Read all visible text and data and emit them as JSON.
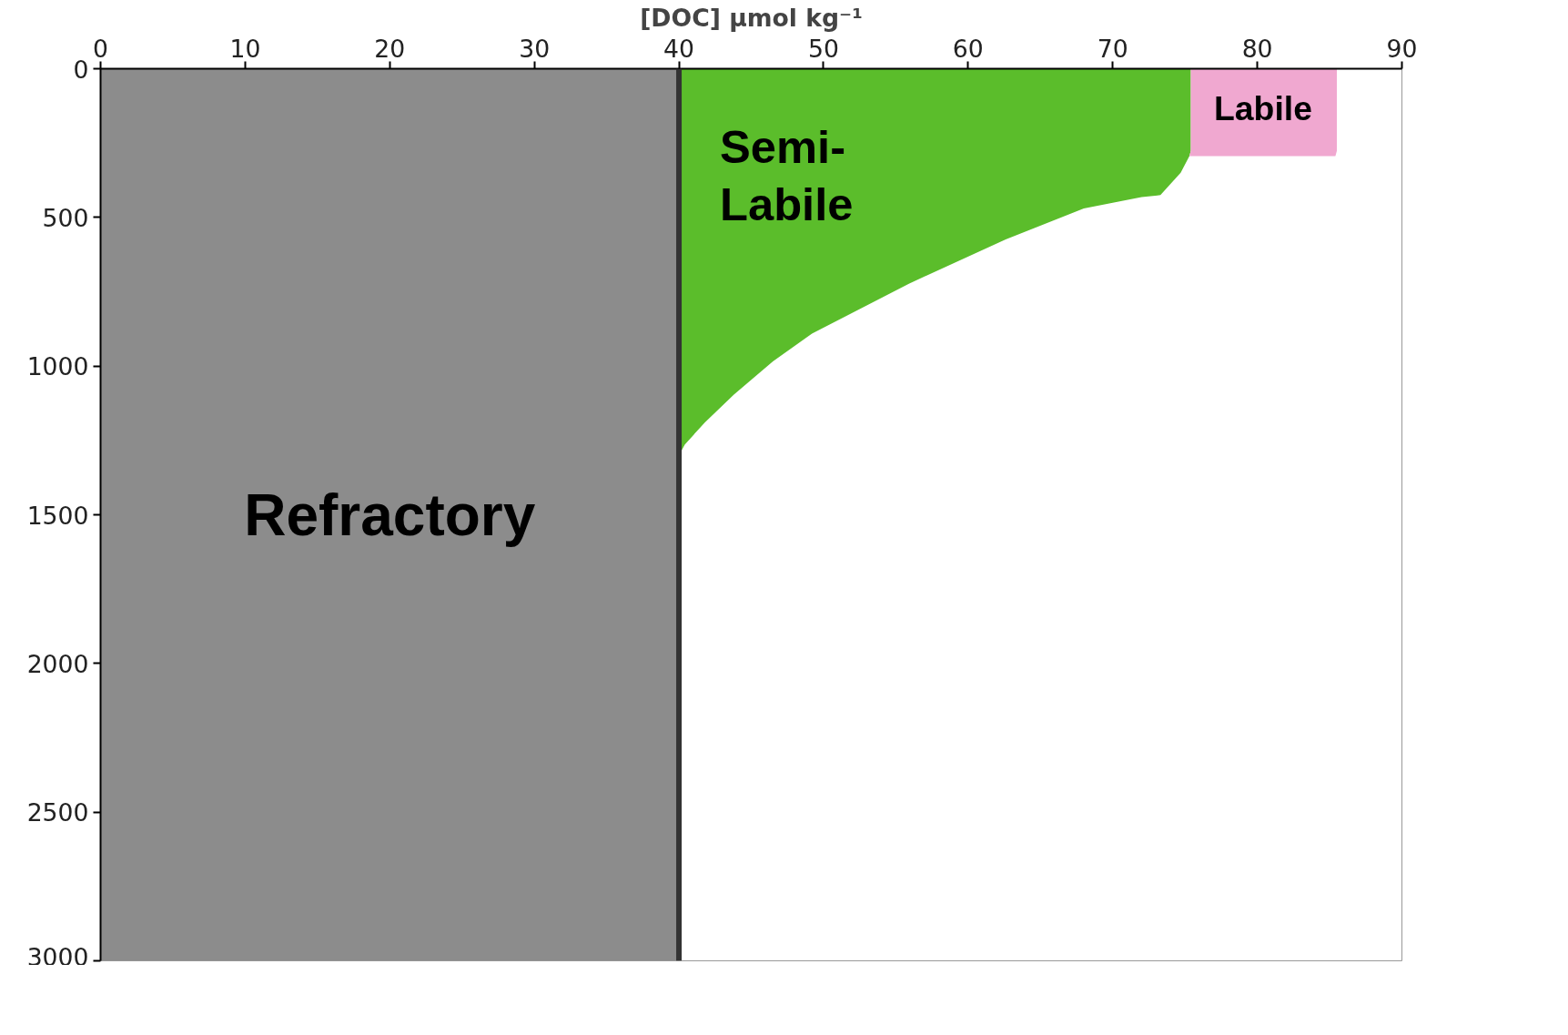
{
  "chart_data": {
    "type": "area",
    "orientation": "horizontal",
    "stacked": true,
    "xlabel": "[DOC] µmol kg⁻¹",
    "x": [
      0,
      276,
      294,
      350,
      425,
      432,
      470,
      574,
      723,
      891,
      984,
      1096,
      1189,
      1264,
      1300,
      3000
    ],
    "series": [
      {
        "name": "Refractory",
        "color": "#8c8c8c",
        "values": [
          40,
          40,
          40,
          40,
          40,
          40,
          40,
          40,
          40,
          40,
          40,
          40,
          40,
          40,
          40,
          40
        ]
      },
      {
        "name": "Semi-Labile",
        "color": "#5bbd2b",
        "values": [
          35.4,
          35.4,
          35.3,
          34.7,
          33.3,
          32,
          28,
          22.6,
          15.9,
          9.2,
          6.5,
          3.8,
          1.8,
          0.4,
          0,
          0
        ]
      },
      {
        "name": "Labile",
        "color": "#f0a8d0",
        "values": [
          10.1,
          10.1,
          10.1,
          null,
          null,
          null,
          null,
          null,
          null,
          null,
          null,
          null,
          null,
          null,
          null,
          null
        ]
      }
    ],
    "xlim": [
      0,
      90
    ],
    "xticks": [
      0,
      10,
      20,
      30,
      40,
      50,
      60,
      70,
      80,
      90
    ],
    "ylim": [
      3000,
      0
    ],
    "yticks": [
      0,
      500,
      1000,
      1500,
      2000,
      2500,
      3000
    ],
    "ref_lines": [
      {
        "axis": "x",
        "value": 40,
        "color": "#333333"
      }
    ],
    "grid": false
  }
}
